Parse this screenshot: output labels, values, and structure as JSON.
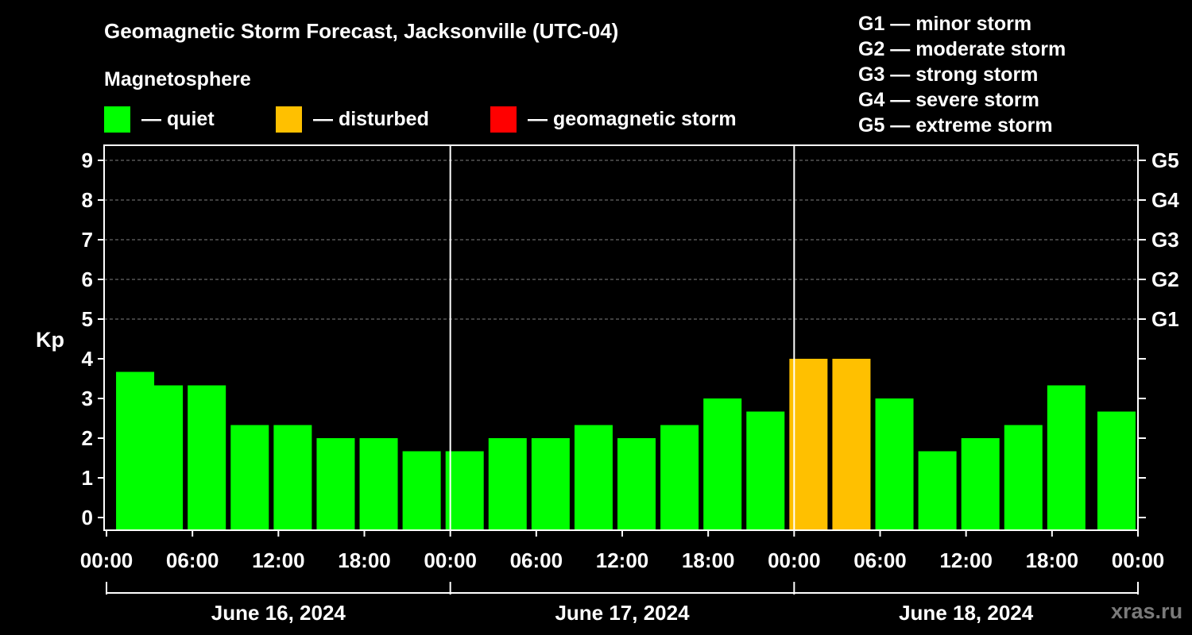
{
  "colors": {
    "quiet": "#00ff00",
    "disturbed": "#ffc000",
    "storm": "#ff0000",
    "grid": "#7f7f7f",
    "axis": "#ffffff"
  },
  "legend": {
    "title": "Magnetosphere",
    "quiet": "— quiet",
    "disturbed": "— disturbed",
    "storm": "— geomagnetic storm"
  },
  "gscale": [
    "G1 — minor storm",
    "G2 — moderate storm",
    "G3 — strong storm",
    "G4 — severe storm",
    "G5 — extreme storm"
  ],
  "watermark": "xras.ru",
  "chart_data": {
    "type": "bar",
    "title": "Geomagnetic Storm Forecast, Jacksonville (UTC-04)",
    "ylabel": "Kp",
    "ylim": [
      0,
      9
    ],
    "yticks": [
      "0",
      "1",
      "2",
      "3",
      "4",
      "5",
      "6",
      "7",
      "8",
      "9"
    ],
    "right_ticks": [
      {
        "kp": 5,
        "label": "G1"
      },
      {
        "kp": 6,
        "label": "G2"
      },
      {
        "kp": 7,
        "label": "G3"
      },
      {
        "kp": 8,
        "label": "G4"
      },
      {
        "kp": 9,
        "label": "G5"
      }
    ],
    "xticks": [
      "00:00",
      "06:00",
      "12:00",
      "18:00",
      "00:00",
      "06:00",
      "12:00",
      "18:00",
      "00:00",
      "06:00",
      "12:00",
      "18:00",
      "00:00"
    ],
    "days": [
      "June 16, 2024",
      "June 17, 2024",
      "June 18, 2024"
    ],
    "bar_hours": [
      2,
      4,
      7,
      10,
      13,
      16,
      19,
      22,
      25,
      28,
      31,
      34,
      37,
      40,
      43,
      46,
      49,
      52,
      55,
      58,
      61,
      64,
      67,
      70.5
    ],
    "values": [
      3.67,
      3.33,
      3.33,
      2.33,
      2.33,
      2.0,
      2.0,
      1.67,
      1.67,
      2.0,
      2.0,
      2.33,
      2.0,
      2.33,
      3.0,
      2.67,
      4.0,
      4.0,
      3.0,
      1.67,
      2.0,
      2.33,
      3.33,
      2.67
    ],
    "status": [
      "quiet",
      "quiet",
      "quiet",
      "quiet",
      "quiet",
      "quiet",
      "quiet",
      "quiet",
      "quiet",
      "quiet",
      "quiet",
      "quiet",
      "quiet",
      "quiet",
      "quiet",
      "quiet",
      "disturbed",
      "disturbed",
      "quiet",
      "quiet",
      "quiet",
      "quiet",
      "quiet",
      "quiet"
    ]
  }
}
